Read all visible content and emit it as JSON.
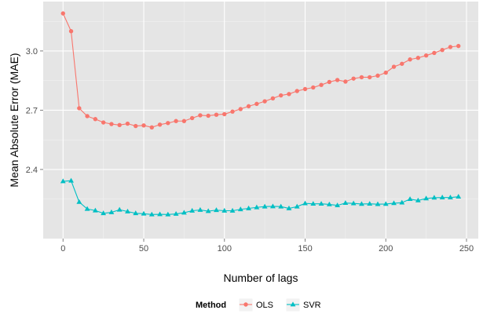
{
  "chart_data": {
    "type": "line",
    "title": "",
    "xlabel": "Number of lags",
    "ylabel": "Mean Absolute Error (MAE)",
    "xlim": [
      -12.3,
      257.3
    ],
    "ylim": [
      2.05,
      3.25
    ],
    "xticks": [
      0,
      50,
      100,
      150,
      200,
      250
    ],
    "xtick_labels": [
      "0",
      "50",
      "100",
      "150",
      "200",
      "250"
    ],
    "yticks": [
      2.4,
      2.7,
      3.0
    ],
    "ytick_labels": [
      "2.4",
      "2.7",
      "3.0"
    ],
    "grid": true,
    "legend": {
      "title": "Method",
      "position": "bottom"
    },
    "x": [
      0,
      5,
      10,
      15,
      20,
      25,
      30,
      35,
      40,
      45,
      50,
      55,
      60,
      65,
      70,
      75,
      80,
      85,
      90,
      95,
      100,
      105,
      110,
      115,
      120,
      125,
      130,
      135,
      140,
      145,
      150,
      155,
      160,
      165,
      170,
      175,
      180,
      185,
      190,
      195,
      200,
      205,
      210,
      215,
      220,
      225,
      230,
      235,
      240,
      245
    ],
    "series": [
      {
        "name": "OLS",
        "color": "#f8766d",
        "marker": "circle",
        "values": [
          3.19,
          3.1,
          2.71,
          2.67,
          2.655,
          2.638,
          2.63,
          2.625,
          2.632,
          2.62,
          2.623,
          2.613,
          2.627,
          2.635,
          2.645,
          2.645,
          2.66,
          2.674,
          2.672,
          2.677,
          2.68,
          2.693,
          2.706,
          2.72,
          2.732,
          2.745,
          2.76,
          2.775,
          2.782,
          2.797,
          2.807,
          2.815,
          2.828,
          2.843,
          2.853,
          2.845,
          2.86,
          2.867,
          2.867,
          2.875,
          2.89,
          2.92,
          2.935,
          2.957,
          2.965,
          2.977,
          2.99,
          3.005,
          3.02,
          3.025
        ]
      },
      {
        "name": "SVR",
        "color": "#00bfc4",
        "marker": "triangle",
        "values": [
          2.34,
          2.343,
          2.235,
          2.2,
          2.192,
          2.178,
          2.183,
          2.196,
          2.187,
          2.178,
          2.176,
          2.172,
          2.173,
          2.172,
          2.175,
          2.181,
          2.191,
          2.195,
          2.189,
          2.194,
          2.191,
          2.191,
          2.198,
          2.203,
          2.208,
          2.212,
          2.213,
          2.212,
          2.203,
          2.212,
          2.228,
          2.226,
          2.226,
          2.223,
          2.218,
          2.23,
          2.228,
          2.225,
          2.226,
          2.224,
          2.225,
          2.229,
          2.232,
          2.25,
          2.243,
          2.253,
          2.257,
          2.258,
          2.258,
          2.262
        ]
      }
    ]
  }
}
